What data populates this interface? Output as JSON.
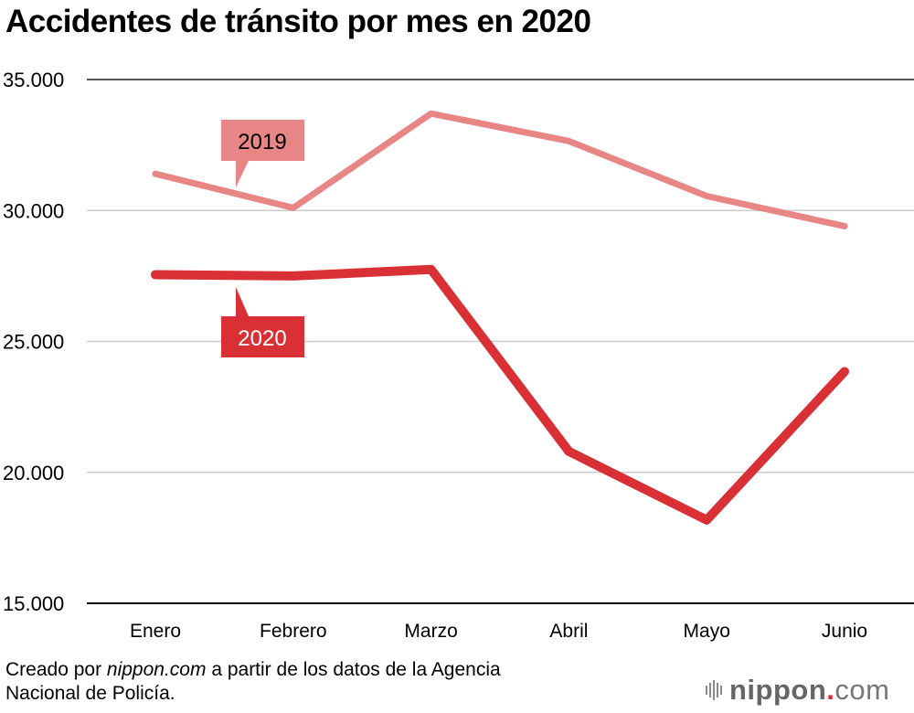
{
  "chart_data": {
    "type": "line",
    "title": "Accidentes de tránsito por mes en 2020",
    "xlabel": "",
    "ylabel": "",
    "categories": [
      "Enero",
      "Febrero",
      "Marzo",
      "Abril",
      "Mayo",
      "Junio"
    ],
    "ylim": [
      15000,
      35000
    ],
    "yticks": [
      15000,
      20000,
      25000,
      30000,
      35000
    ],
    "ytick_labels": [
      "15.000",
      "20.000",
      "25.000",
      "30.000",
      "35.000"
    ],
    "grid": true,
    "series": [
      {
        "name": "2019",
        "color": "#e88585",
        "values": [
          31400,
          30100,
          33700,
          32650,
          30550,
          29400
        ]
      },
      {
        "name": "2020",
        "color": "#d93035",
        "values": [
          27550,
          27500,
          27750,
          20800,
          18180,
          23850
        ]
      }
    ],
    "legend": "inline-callouts"
  },
  "source": {
    "prefix": "Creado por ",
    "site": "nippon.com",
    "suffix_line1": " a partir de los datos de la Agencia",
    "line2": "Nacional de Policía."
  },
  "logo": {
    "brand": "nippon",
    "dot": ".",
    "tld": "com"
  }
}
